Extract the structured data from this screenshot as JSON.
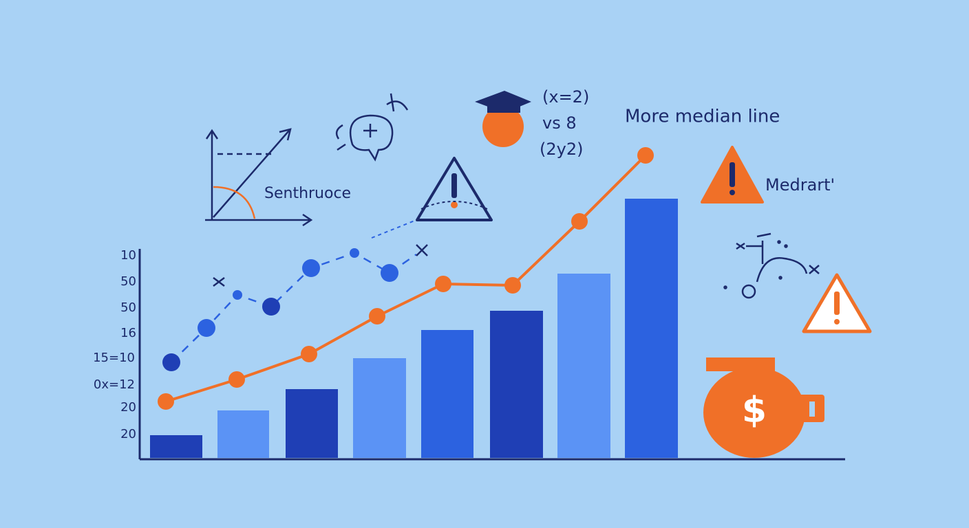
{
  "y_labels": [
    "10",
    "50",
    "50",
    "16",
    "15=10",
    "0x=12",
    "20",
    "20"
  ],
  "axes_icon_label": "Senthruoce",
  "formula": [
    "(x=2)",
    "vs 8",
    "(2y2)"
  ],
  "headline": "More median line",
  "warning_label": "Medrart'",
  "money_symbol": "$"
}
